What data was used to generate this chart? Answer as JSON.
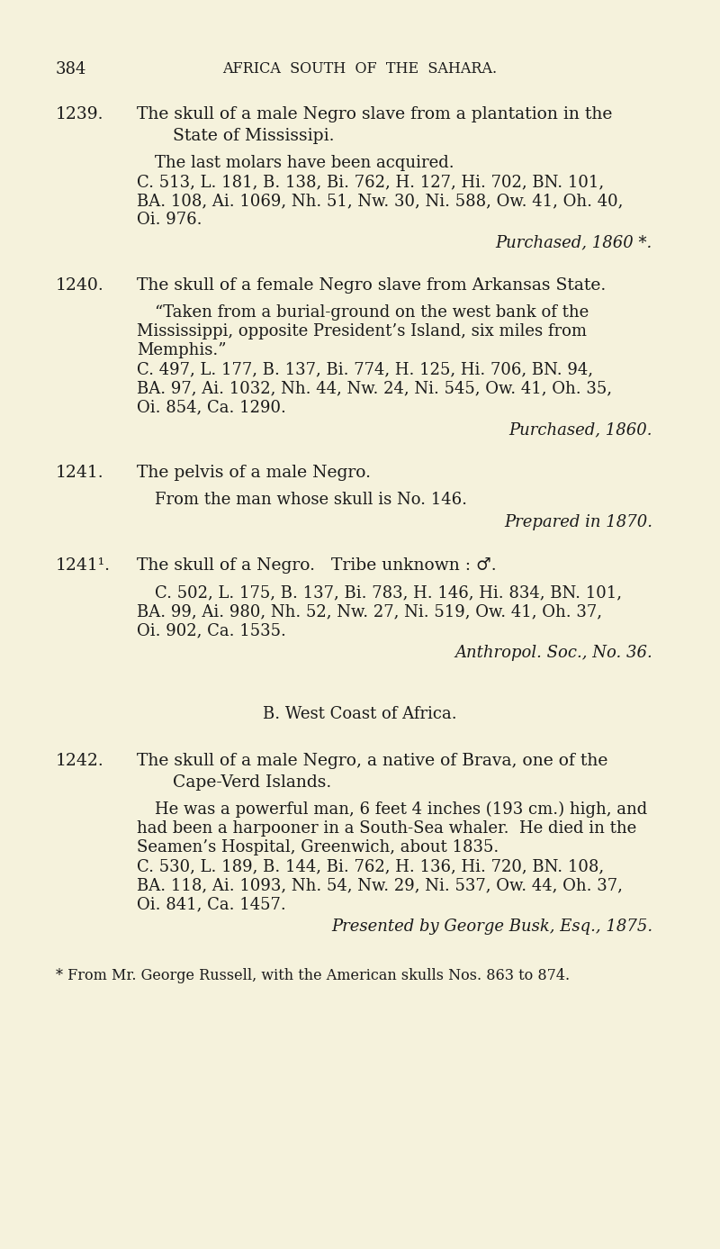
{
  "bg_color": "#f5f2dc",
  "text_color": "#1a1a1a",
  "page_number": "384",
  "header": "AFRICA  SOUTH  OF  THE  SAHARA.",
  "entries": [
    {
      "number": "1239.",
      "title_line1": "The skull of a male Negro slave from a plantation in the",
      "title_line2": "State of Mississipi.",
      "body": [
        "The last molars have been acquired.",
        "C. 513, L. 181, B. 138, Bi. 762, H. 127, Hi. 702, BN. 101,",
        "BA. 108, Ai. 1069, Nh. 51, Nw. 30, Ni. 588, Ow. 41, Oh. 40,",
        "Oi. 976."
      ],
      "provenance": "Purchased, 1860 *."
    },
    {
      "number": "1240.",
      "title_line1": "The skull of a female Negro slave from Arkansas State.",
      "title_line2": "",
      "body": [
        "“Taken from a burial-ground on the west bank of the",
        "Mississippi, opposite President’s Island, six miles from",
        "Memphis.”",
        "C. 497, L. 177, B. 137, Bi. 774, H. 125, Hi. 706, BN. 94,",
        "BA. 97, Ai. 1032, Nh. 44, Nw. 24, Ni. 545, Ow. 41, Oh. 35,",
        "Oi. 854, Ca. 1290."
      ],
      "provenance": "Purchased, 1860."
    },
    {
      "number": "1241.",
      "title_line1": "The pelvis of a male Negro.",
      "title_line2": "",
      "body": [
        "From the man whose skull is No. 146."
      ],
      "provenance": "Prepared in 1870."
    },
    {
      "number": "1241¹.",
      "title_line1": "The skull of a Negro.   Tribe unknown : ♂.",
      "title_line2": "",
      "body": [
        "C. 502, L. 175, B. 137, Bi. 783, H. 146, Hi. 834, BN. 101,",
        "BA. 99, Ai. 980, Nh. 52, Nw. 27, Ni. 519, Ow. 41, Oh. 37,",
        "Oi. 902, Ca. 1535."
      ],
      "provenance": "Anthropol. Soc., No. 36."
    }
  ],
  "section_header": "B. West Coast of Africa.",
  "entries2": [
    {
      "number": "1242.",
      "title_line1": "The skull of a male Negro, a native of Brava, one of the",
      "title_line2": "Cape-Verd Islands.",
      "body": [
        "He was a powerful man, 6 feet 4 inches (193 cm.) high, and",
        "had been a harpooner in a South-Sea whaler.  He died in the",
        "Seamen’s Hospital, Greenwich, about 1835.",
        "C. 530, L. 189, B. 144, Bi. 762, H. 136, Hi. 720, BN. 108,",
        "BA. 118, Ai. 1093, Nh. 54, Nw. 29, Ni. 537, Ow. 44, Oh. 37,",
        "Oi. 841, Ca. 1457."
      ],
      "provenance": "Presented by George Busk, Esq., 1875."
    }
  ],
  "footnote": "* From Mr. George Russell, with the American skulls Nos. 863 to 874."
}
